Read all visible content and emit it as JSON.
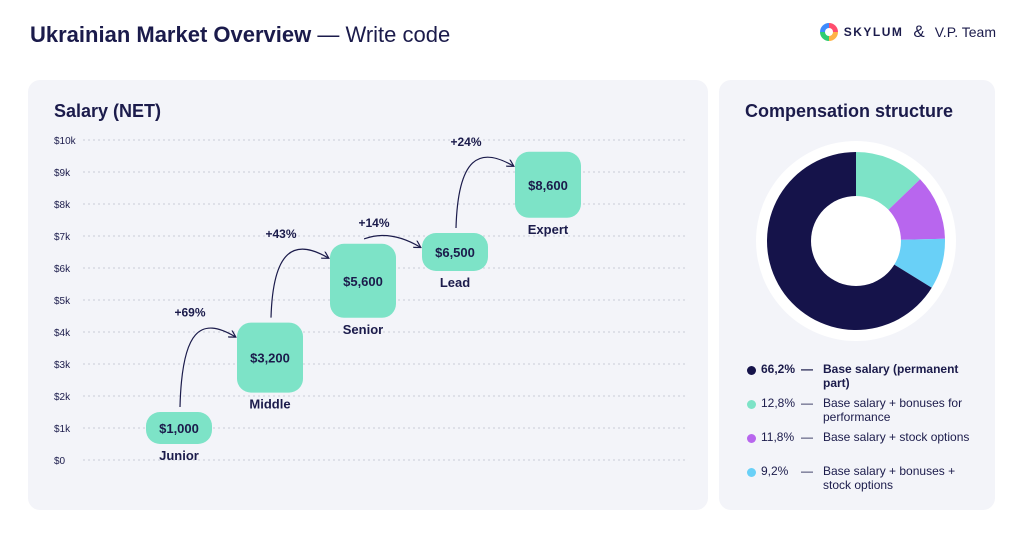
{
  "header": {
    "title_bold": "Ukrainian Market Overview",
    "title_rest": " — Write code",
    "brand_left": "SKYLUM",
    "brand_amp": "&",
    "brand_right": "V.P. Team"
  },
  "salary": {
    "title": "Salary (NET)",
    "chart_data": {
      "type": "bar",
      "title": "Salary (NET)",
      "ylim": [
        0,
        10000
      ],
      "yticks": [
        "$0",
        "$1k",
        "$2k",
        "$3k",
        "$4k",
        "$5k",
        "$6k",
        "$7k",
        "$8k",
        "$9k",
        "$10k"
      ],
      "categories": [
        "Junior",
        "Middle",
        "Senior",
        "Lead",
        "Expert"
      ],
      "values": [
        1000,
        3200,
        5600,
        6500,
        8600
      ],
      "value_labels": [
        "$1,000",
        "$3,200",
        "$5,600",
        "$6,500",
        "$8,600"
      ],
      "growth_labels": [
        "+69%",
        "+43%",
        "+14%",
        "+24%"
      ],
      "grid": true
    },
    "colors": {
      "box": "#7de3c7",
      "text": "#1b1b4b",
      "grid": "#c9cbd8"
    }
  },
  "compensation": {
    "title": "Compensation structure",
    "chart_data": {
      "type": "pie",
      "values": [
        66.2,
        12.8,
        11.8,
        9.2
      ],
      "labels": [
        "Base salary (permanent part)",
        "Base salary + bonuses for performance",
        "Base salary + stock options",
        "Base salary + bonuses + stock options"
      ],
      "colors": [
        "#15134a",
        "#7de3c7",
        "#b866ee",
        "#69d0f7"
      ]
    },
    "legend": [
      {
        "pct": "66,2%",
        "dash": "—",
        "label": "Base salary (permanent part)",
        "color": "#15134a"
      },
      {
        "pct": "12,8%",
        "dash": "—",
        "label": "Base salary + bonuses for performance",
        "color": "#7de3c7"
      },
      {
        "pct": "11,8%",
        "dash": "—",
        "label": "Base salary + stock options",
        "color": "#b866ee"
      },
      {
        "pct": "9,2%",
        "dash": "—",
        "label": "Base salary + bonuses + stock options",
        "color": "#69d0f7"
      }
    ]
  }
}
